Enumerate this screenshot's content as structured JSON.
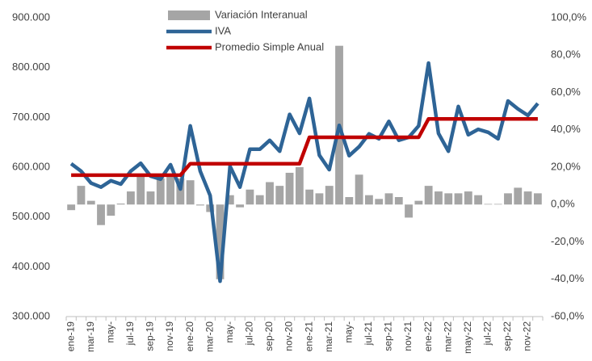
{
  "chart_data": {
    "type": "combo",
    "categories": [
      "ene-19",
      null,
      "mar-19",
      null,
      "may-",
      null,
      "jul-19",
      null,
      "sep-19",
      null,
      "nov-19",
      null,
      "ene-20",
      null,
      "mar-20",
      null,
      "may-",
      null,
      "jul-20",
      null,
      "sep-20",
      null,
      "nov-20",
      null,
      "ene-21",
      null,
      "mar-21",
      null,
      "may-",
      null,
      "jul-21",
      null,
      "sep-21",
      null,
      "nov-21",
      null,
      "ene-22",
      null,
      "mar-22",
      null,
      "may-22",
      null,
      "jul-22",
      null,
      "sep-22",
      null,
      "nov-22",
      null
    ],
    "series": [
      {
        "name": "Variación Interanual",
        "type": "bar",
        "axis": "y2",
        "color": "#a5a5a5",
        "values": [
          -3,
          10,
          2,
          -11,
          -6,
          0.5,
          7,
          16,
          7,
          14,
          15,
          14,
          13,
          -0.5,
          -4,
          -40,
          5,
          -1.5,
          8,
          5,
          12,
          10,
          17,
          20,
          8,
          6,
          10,
          85,
          4,
          16,
          5,
          3,
          6,
          4,
          -7,
          2,
          10,
          7,
          6,
          6,
          7,
          5,
          0.3,
          0.3,
          6,
          9,
          7,
          6
        ]
      },
      {
        "name": "IVA",
        "type": "line",
        "color": "#2e6496",
        "values": [
          607000,
          592000,
          568000,
          560000,
          573000,
          566000,
          592000,
          608000,
          582000,
          576000,
          605000,
          556000,
          683000,
          592000,
          543000,
          371000,
          602000,
          560000,
          636000,
          636000,
          654000,
          632000,
          706000,
          668000,
          738000,
          624000,
          595000,
          684000,
          623000,
          641000,
          667000,
          657000,
          692000,
          654000,
          660000,
          683000,
          809000,
          668000,
          632000,
          722000,
          665000,
          676000,
          670000,
          657000,
          733000,
          717000,
          704000,
          728000
        ]
      },
      {
        "name": "Promedio Simple Anual",
        "type": "line",
        "color": "#c00000",
        "values": [
          584000,
          584000,
          584000,
          584000,
          584000,
          584000,
          584000,
          584000,
          584000,
          584000,
          584000,
          584000,
          607000,
          607000,
          607000,
          607000,
          607000,
          607000,
          607000,
          607000,
          607000,
          607000,
          607000,
          607000,
          660000,
          660000,
          660000,
          660000,
          660000,
          660000,
          660000,
          660000,
          660000,
          660000,
          660000,
          660000,
          697000,
          697000,
          697000,
          697000,
          697000,
          697000,
          697000,
          697000,
          697000,
          697000,
          697000,
          697000
        ]
      }
    ],
    "ylim": [
      300000,
      900000
    ],
    "yticks": [
      {
        "value": 300000,
        "label": "300.000"
      },
      {
        "value": 400000,
        "label": "400.000"
      },
      {
        "value": 500000,
        "label": "500.000"
      },
      {
        "value": 600000,
        "label": "600.000"
      },
      {
        "value": 700000,
        "label": "700.000"
      },
      {
        "value": 800000,
        "label": "800.000"
      },
      {
        "value": 900000,
        "label": "900.000"
      }
    ],
    "y2lim": [
      -60,
      100
    ],
    "y2ticks": [
      {
        "value": -60,
        "label": "-60,0%"
      },
      {
        "value": -40,
        "label": "-40,0%"
      },
      {
        "value": -20,
        "label": "-20,0%"
      },
      {
        "value": 0,
        "label": "0,0%"
      },
      {
        "value": 20,
        "label": "20,0%"
      },
      {
        "value": 40,
        "label": "40,0%"
      },
      {
        "value": 60,
        "label": "60,0%"
      },
      {
        "value": 80,
        "label": "80,0%"
      },
      {
        "value": 100,
        "label": "100,0%"
      }
    ],
    "legend": "top"
  }
}
